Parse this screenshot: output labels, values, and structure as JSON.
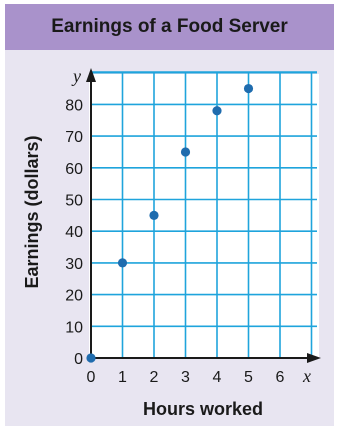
{
  "chart_data": {
    "type": "scatter",
    "title": "Earnings of a Food Server",
    "xlabel": "Hours worked",
    "ylabel": "Earnings (dollars)",
    "x_var": "x",
    "y_var": "y",
    "xlim": [
      0,
      7
    ],
    "ylim": [
      0,
      85
    ],
    "x_ticks": [
      "0",
      "1",
      "2",
      "3",
      "4",
      "5",
      "6"
    ],
    "y_ticks": [
      "0",
      "10",
      "20",
      "30",
      "40",
      "50",
      "60",
      "70",
      "80"
    ],
    "grid": true,
    "points": [
      {
        "x": 0,
        "y": 0
      },
      {
        "x": 1,
        "y": 30
      },
      {
        "x": 2,
        "y": 45
      },
      {
        "x": 3,
        "y": 65
      },
      {
        "x": 4,
        "y": 78
      },
      {
        "x": 5,
        "y": 85
      }
    ],
    "colors": {
      "grid": "#1fa4dc",
      "point": "#1f6cae",
      "axis": "#1a1a1a",
      "title_bg": "#a992cb",
      "panel_bg": "#e8e5f1"
    }
  }
}
